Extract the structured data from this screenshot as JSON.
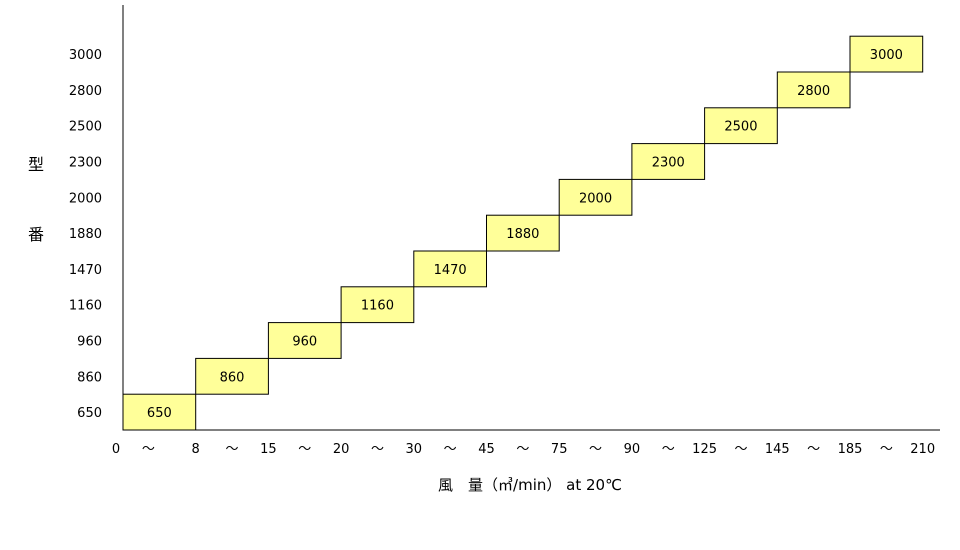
{
  "chart_data": {
    "type": "bar",
    "orientation": "step",
    "ylabel_chars": [
      "型",
      "番"
    ],
    "xlabel": "風　量（㎥/min） at 20℃",
    "x_ticks": [
      "0",
      "〜",
      "8",
      "〜",
      "15",
      "〜",
      "20",
      "〜",
      "30",
      "〜",
      "45",
      "〜",
      "75",
      "〜",
      "90",
      "〜",
      "125",
      "〜",
      "145",
      "〜",
      "185",
      "〜",
      "210"
    ],
    "y_categories": [
      "650",
      "860",
      "960",
      "1160",
      "1470",
      "1880",
      "2000",
      "2300",
      "2500",
      "2800",
      "3000"
    ],
    "bars": [
      {
        "label": "650",
        "x_from": 0,
        "x_to": 8
      },
      {
        "label": "860",
        "x_from": 8,
        "x_to": 15
      },
      {
        "label": "960",
        "x_from": 15,
        "x_to": 20
      },
      {
        "label": "1160",
        "x_from": 20,
        "x_to": 30
      },
      {
        "label": "1470",
        "x_from": 30,
        "x_to": 45
      },
      {
        "label": "1880",
        "x_from": 45,
        "x_to": 75
      },
      {
        "label": "2000",
        "x_from": 75,
        "x_to": 90
      },
      {
        "label": "2300",
        "x_from": 90,
        "x_to": 125
      },
      {
        "label": "2500",
        "x_from": 125,
        "x_to": 145
      },
      {
        "label": "2800",
        "x_from": 145,
        "x_to": 185
      },
      {
        "label": "3000",
        "x_from": 185,
        "x_to": 210
      }
    ],
    "bar_color": "#ffff99",
    "bar_border": "#000000",
    "grid": false
  }
}
